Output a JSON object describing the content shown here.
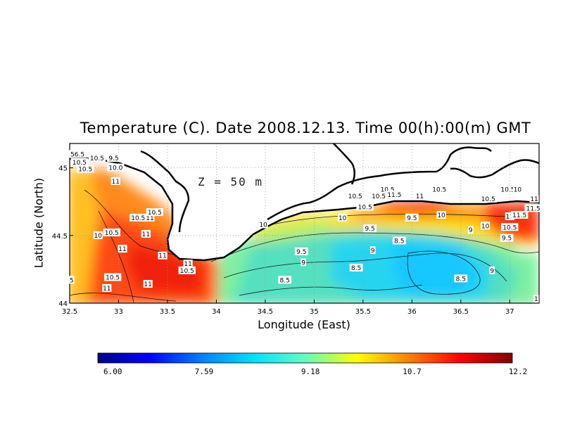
{
  "chart_data": {
    "type": "heatmap",
    "title": "Temperature (C). Date 2008.12.13. Time 00(h):00(m) GMT",
    "xlabel": "Longitude (East)",
    "ylabel": "Latitude (North)",
    "annotation": "Z = 50 m",
    "xlim": [
      32.5,
      37.3
    ],
    "ylim": [
      44.0,
      45.18
    ],
    "x_ticks": [
      "32.5",
      "33",
      "33.5",
      "34",
      "34.5",
      "35",
      "35.5",
      "36",
      "36.5",
      "37"
    ],
    "x_tick_values": [
      32.5,
      33,
      33.5,
      34,
      34.5,
      35,
      35.5,
      36,
      36.5,
      37
    ],
    "y_ticks": [
      "44",
      "44.5",
      "45"
    ],
    "y_tick_values": [
      44,
      44.5,
      45
    ],
    "grid": "dotted",
    "colorbar": {
      "min": 6.0,
      "max": 12.2,
      "tick_labels": [
        "6.00",
        "7.59",
        "9.18",
        "10.7",
        "12.2"
      ],
      "tick_values": [
        6.0,
        7.59,
        9.18,
        10.7,
        12.2
      ],
      "colors": [
        "#00008a",
        "#0000ff",
        "#0080ff",
        "#00e0ff",
        "#60ffc0",
        "#ffff00",
        "#ff8000",
        "#ff0000",
        "#800000"
      ]
    },
    "contour_labels": [
      {
        "text": "56.5",
        "lon": 32.58,
        "lat": 45.1
      },
      {
        "text": "10.5",
        "lon": 32.78,
        "lat": 45.07
      },
      {
        "text": "9.5",
        "lon": 32.95,
        "lat": 45.07
      },
      {
        "text": "10.5",
        "lon": 32.6,
        "lat": 45.04
      },
      {
        "text": "10.5",
        "lon": 32.66,
        "lat": 44.99
      },
      {
        "text": "10.0",
        "lon": 32.97,
        "lat": 45.0
      },
      {
        "text": "11",
        "lon": 32.97,
        "lat": 44.9
      },
      {
        "text": "10.5",
        "lon": 33.2,
        "lat": 44.63
      },
      {
        "text": "11",
        "lon": 33.32,
        "lat": 44.63
      },
      {
        "text": "10.5",
        "lon": 33.37,
        "lat": 44.67
      },
      {
        "text": "10.5",
        "lon": 32.93,
        "lat": 44.52
      },
      {
        "text": "10",
        "lon": 32.79,
        "lat": 44.5
      },
      {
        "text": "11",
        "lon": 33.28,
        "lat": 44.51
      },
      {
        "text": "11",
        "lon": 33.04,
        "lat": 44.4
      },
      {
        "text": "11",
        "lon": 33.45,
        "lat": 44.35
      },
      {
        "text": "11",
        "lon": 33.71,
        "lat": 44.29
      },
      {
        "text": "10.5",
        "lon": 33.7,
        "lat": 44.24
      },
      {
        "text": "10.5",
        "lon": 32.94,
        "lat": 44.19
      },
      {
        "text": "11",
        "lon": 33.3,
        "lat": 44.14
      },
      {
        "text": "11",
        "lon": 32.88,
        "lat": 44.11
      },
      {
        "text": "5",
        "lon": 32.52,
        "lat": 44.17
      },
      {
        "text": "10",
        "lon": 34.48,
        "lat": 44.58
      },
      {
        "text": "9.5",
        "lon": 34.87,
        "lat": 44.38
      },
      {
        "text": "9",
        "lon": 34.89,
        "lat": 44.3
      },
      {
        "text": "8.5",
        "lon": 34.7,
        "lat": 44.17
      },
      {
        "text": "10",
        "lon": 35.29,
        "lat": 44.63
      },
      {
        "text": "10.5",
        "lon": 35.52,
        "lat": 44.71
      },
      {
        "text": "9.5",
        "lon": 35.57,
        "lat": 44.55
      },
      {
        "text": "9",
        "lon": 35.6,
        "lat": 44.39
      },
      {
        "text": "8.5",
        "lon": 35.43,
        "lat": 44.26
      },
      {
        "text": "8.5",
        "lon": 35.87,
        "lat": 44.46
      },
      {
        "text": "9.5",
        "lon": 36.0,
        "lat": 44.63
      },
      {
        "text": "10",
        "lon": 36.3,
        "lat": 44.65
      },
      {
        "text": "9",
        "lon": 36.6,
        "lat": 44.54
      },
      {
        "text": "8.5",
        "lon": 36.5,
        "lat": 44.18
      },
      {
        "text": "9",
        "lon": 36.82,
        "lat": 44.24
      },
      {
        "text": "10",
        "lon": 36.75,
        "lat": 44.57
      },
      {
        "text": "10.5",
        "lon": 35.75,
        "lat": 44.84
      },
      {
        "text": "11.5",
        "lon": 35.82,
        "lat": 44.8
      },
      {
        "text": "11",
        "lon": 36.08,
        "lat": 44.79
      },
      {
        "text": "10.5",
        "lon": 36.28,
        "lat": 44.84
      },
      {
        "text": "10.5",
        "lon": 36.78,
        "lat": 44.77
      },
      {
        "text": "10.5",
        "lon": 36.98,
        "lat": 44.84
      },
      {
        "text": "10",
        "lon": 37.08,
        "lat": 44.84
      },
      {
        "text": "11",
        "lon": 37.25,
        "lat": 44.77
      },
      {
        "text": "11.5",
        "lon": 37.24,
        "lat": 44.7
      },
      {
        "text": "11",
        "lon": 37.0,
        "lat": 44.64
      },
      {
        "text": "11.5",
        "lon": 37.1,
        "lat": 44.65
      },
      {
        "text": "10.5",
        "lon": 37.0,
        "lat": 44.56
      },
      {
        "text": "9.5",
        "lon": 36.97,
        "lat": 44.48
      },
      {
        "text": "10.5",
        "lon": 35.42,
        "lat": 44.79
      },
      {
        "text": "10.5",
        "lon": 35.66,
        "lat": 44.79
      },
      {
        "text": "1",
        "lon": 37.27,
        "lat": 44.03
      }
    ]
  }
}
